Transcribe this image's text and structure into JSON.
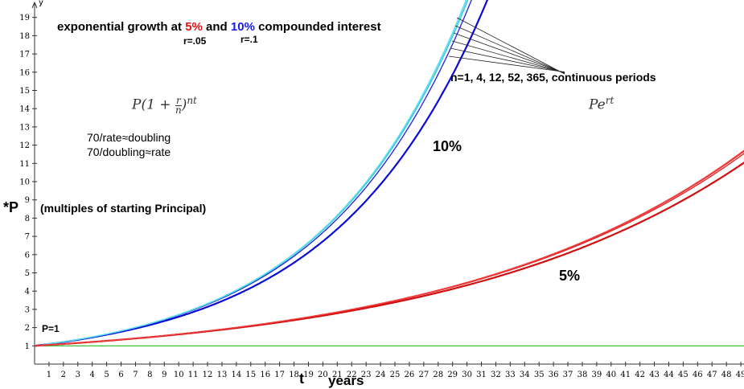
{
  "chart_data": {
    "type": "line",
    "title_parts": [
      "exponential growth at ",
      "5%",
      " and ",
      "10%",
      " compounded interest"
    ],
    "rate_labels": [
      "r=.05",
      "r=.1"
    ],
    "discrete_formula": "P(1 + r/n)^nt",
    "continuous_formula": "Pe^rt",
    "notes": [
      "70/rate≈doubling",
      "70/doubling≈rate"
    ],
    "periods_label": "n=1, 4, 12, 52, 365, continuous periods",
    "ylabel": "*P",
    "ylabel_note": "(multiples of starting Principal)",
    "xlabel": "t",
    "xunit": "years",
    "y_axis_letter": "y",
    "start_label": "P=1",
    "curve_labels": [
      "10%",
      "5%"
    ],
    "xlim": [
      0,
      49.5
    ],
    "ylim": [
      0,
      19.4
    ],
    "x_ticks": [
      1,
      2,
      3,
      4,
      5,
      6,
      7,
      8,
      9,
      10,
      11,
      12,
      13,
      14,
      15,
      16,
      17,
      18,
      19,
      20,
      21,
      22,
      23,
      24,
      25,
      26,
      27,
      28,
      29,
      30,
      31,
      32,
      33,
      34,
      35,
      36,
      37,
      38,
      39,
      40,
      41,
      42,
      43,
      44,
      45,
      46,
      47,
      48,
      49
    ],
    "y_ticks": [
      1,
      2,
      3,
      4,
      5,
      6,
      7,
      8,
      9,
      10,
      11,
      12,
      13,
      14,
      15,
      16,
      17,
      18,
      19
    ],
    "principal": 1,
    "series": [
      {
        "rate": 0.1,
        "n": 1,
        "color": "#0b0bd6"
      },
      {
        "rate": 0.1,
        "n": 4,
        "color": "#2020dd"
      },
      {
        "rate": 0.1,
        "n": 12,
        "color": "#30c8d8"
      },
      {
        "rate": 0.1,
        "n": 52,
        "color": "#40d0e0"
      },
      {
        "rate": 0.1,
        "n": 365,
        "color": "#50d8e8"
      },
      {
        "rate": 0.1,
        "n": "continuous",
        "color": "#60e0f0"
      },
      {
        "rate": 0.05,
        "n": 1,
        "color": "#d01010"
      },
      {
        "rate": 0.05,
        "n": 4,
        "color": "#e02020"
      },
      {
        "rate": 0.05,
        "n": 12,
        "color": "#e83030"
      },
      {
        "rate": 0.05,
        "n": "continuous",
        "color": "#f04040"
      }
    ],
    "baseline": {
      "value": 1,
      "color": "#22bb22"
    }
  }
}
